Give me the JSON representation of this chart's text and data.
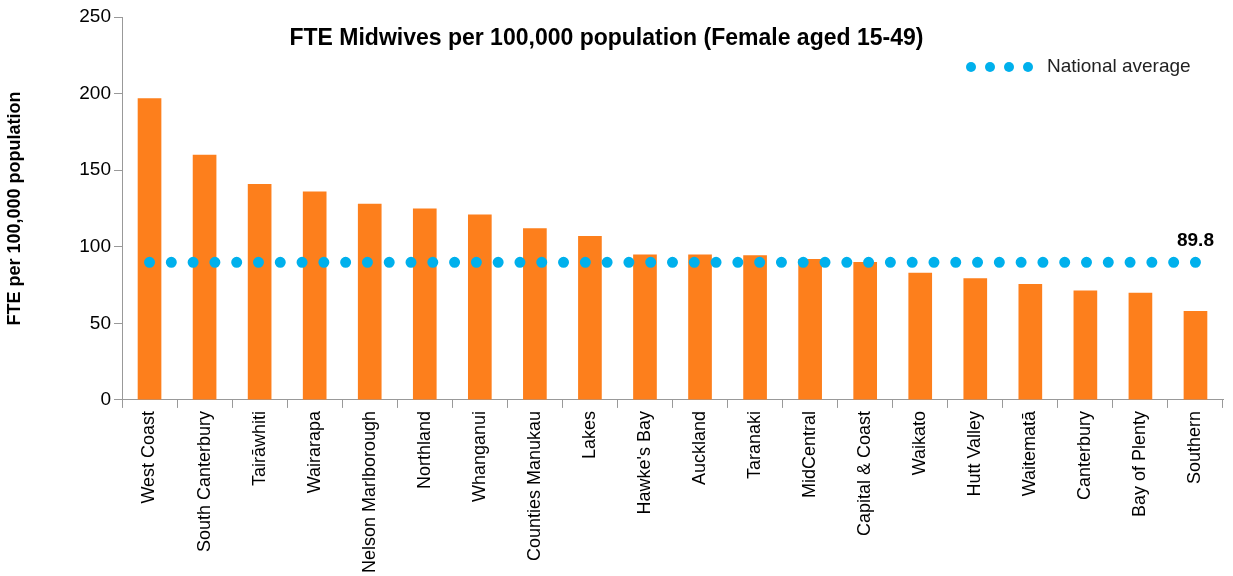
{
  "chart_data": {
    "type": "bar",
    "title": "FTE Midwives per 100,000 population (Female aged 15-49)",
    "ylabel": "FTE per 100,000 population",
    "categories": [
      "West Coast",
      "South Canterbury",
      "Tairāwhiti",
      "Wairarapa",
      "Nelson Marlborough",
      "Northland",
      "Whanganui",
      "Counties Manukau",
      "Lakes",
      "Hawke's Bay",
      "Auckland",
      "Taranaki",
      "MidCentral",
      "Capital & Coast",
      "Waikato",
      "Hutt Valley",
      "Waitematā",
      "Canterbury",
      "Bay of Plenty",
      "Southern"
    ],
    "series": [
      {
        "color": "#fd7f1c",
        "values": [
          197,
          160,
          141,
          136,
          128,
          125,
          121,
          112,
          107,
          95,
          95,
          94.5,
          92,
          90,
          83,
          79.5,
          75.7,
          71.5,
          70,
          58
        ]
      },
      {
        "type": "line",
        "name": "National average",
        "color": "#00b0ec",
        "line_style": "dotted",
        "marker": "none",
        "values": [
          89.8,
          89.8,
          89.8,
          89.8,
          89.8,
          89.8,
          89.8,
          89.8,
          89.8,
          89.8,
          89.8,
          89.8,
          89.8,
          89.8,
          89.8,
          89.8,
          89.8,
          89.8,
          89.8,
          89.8
        ],
        "value_labels": [
          null,
          null,
          null,
          null,
          null,
          null,
          null,
          null,
          null,
          null,
          null,
          null,
          null,
          null,
          null,
          null,
          null,
          null,
          null,
          "89.8"
        ]
      }
    ],
    "ylim": [
      0,
      250
    ],
    "yticks": [
      0,
      50,
      100,
      150,
      200,
      250
    ],
    "grid": false,
    "legend": "top right"
  }
}
